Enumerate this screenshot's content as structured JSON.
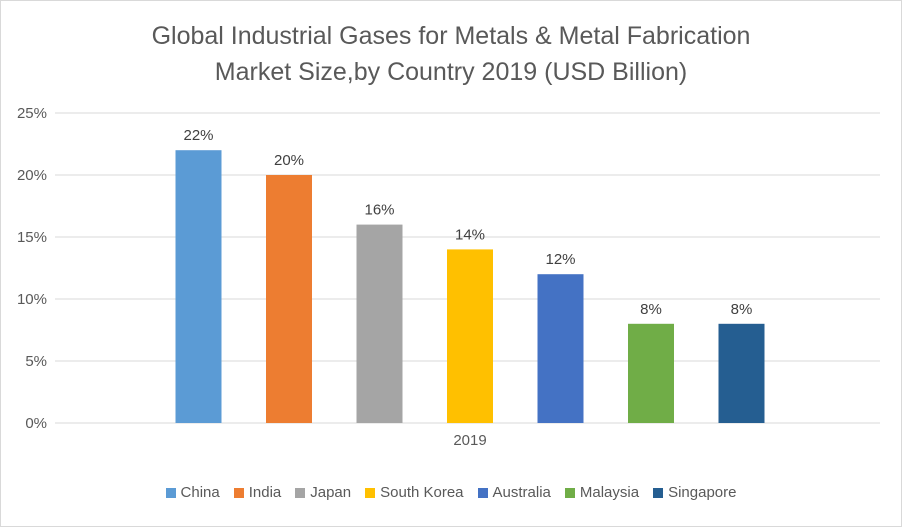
{
  "chart_data": {
    "type": "bar",
    "title": [
      "Global Industrial Gases for Metals & Metal Fabrication",
      "Market Size,by Country 2019 (USD Billion)"
    ],
    "categories": [
      "2019"
    ],
    "series": [
      {
        "name": "China",
        "values": [
          22
        ],
        "label": "22%",
        "color": "#5B9BD5"
      },
      {
        "name": "India",
        "values": [
          20
        ],
        "label": "20%",
        "color": "#ED7D31"
      },
      {
        "name": "Japan",
        "values": [
          16
        ],
        "label": "16%",
        "color": "#A5A5A5"
      },
      {
        "name": "South Korea",
        "values": [
          14
        ],
        "label": "14%",
        "color": "#FFC000"
      },
      {
        "name": "Australia",
        "values": [
          12
        ],
        "label": "12%",
        "color": "#4472C4"
      },
      {
        "name": "Malaysia",
        "values": [
          8
        ],
        "label": "8%",
        "color": "#70AD47"
      },
      {
        "name": "Singapore",
        "values": [
          8
        ],
        "label": "8%",
        "color": "#255E91"
      }
    ],
    "ylim": [
      0,
      25
    ],
    "yticks": [
      "0%",
      "5%",
      "10%",
      "15%",
      "20%",
      "25%"
    ],
    "grid": true,
    "legend": "bottom"
  }
}
